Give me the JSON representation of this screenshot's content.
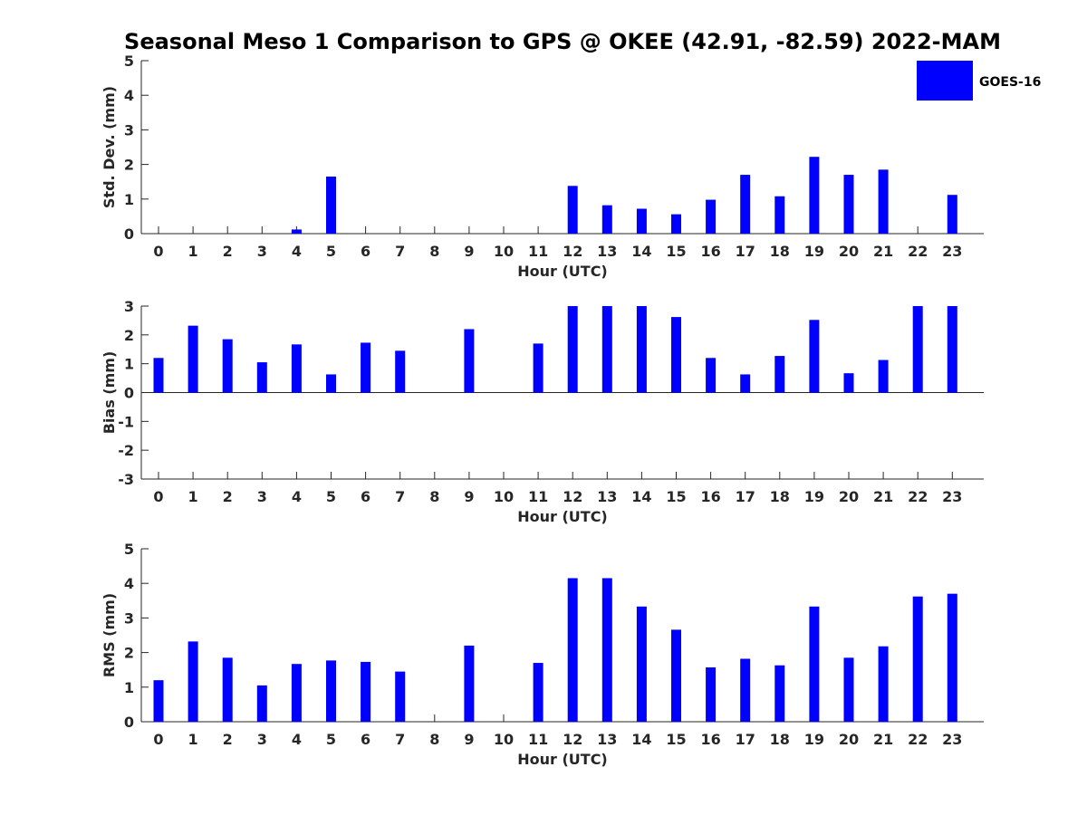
{
  "title": "Seasonal Meso 1 Comparison to GPS @ OKEE (42.91, -82.59) 2022-MAM",
  "legend": {
    "label": "GOES-16",
    "color": "#0000ff"
  },
  "bar_color": "#0000ff",
  "chart_data": [
    {
      "type": "bar",
      "id": "std",
      "categories": [
        "0",
        "1",
        "2",
        "3",
        "4",
        "5",
        "6",
        "7",
        "8",
        "9",
        "10",
        "11",
        "12",
        "13",
        "14",
        "15",
        "16",
        "17",
        "18",
        "19",
        "20",
        "21",
        "22",
        "23"
      ],
      "series": [
        {
          "name": "GOES-16",
          "values": [
            0,
            0,
            0,
            0,
            0.12,
            1.65,
            0,
            0,
            0,
            0,
            0,
            0,
            1.38,
            0.82,
            0.72,
            0.56,
            0.98,
            1.7,
            1.08,
            2.22,
            1.7,
            1.85,
            0,
            1.12
          ]
        }
      ],
      "xlabel": "Hour (UTC)",
      "ylabel": "Std. Dev. (mm)",
      "ylim": [
        0,
        5
      ],
      "yticks": [
        "0",
        "1",
        "2",
        "3",
        "4",
        "5"
      ]
    },
    {
      "type": "bar",
      "id": "bias",
      "categories": [
        "0",
        "1",
        "2",
        "3",
        "4",
        "5",
        "6",
        "7",
        "8",
        "9",
        "10",
        "11",
        "12",
        "13",
        "14",
        "15",
        "16",
        "17",
        "18",
        "19",
        "20",
        "21",
        "22",
        "23"
      ],
      "series": [
        {
          "name": "GOES-16",
          "values": [
            1.2,
            2.32,
            1.85,
            1.05,
            1.67,
            0.63,
            1.73,
            1.45,
            0,
            2.2,
            0,
            1.7,
            3.0,
            3.0,
            3.0,
            2.62,
            1.2,
            0.63,
            1.27,
            2.52,
            0.67,
            1.13,
            3.0,
            3.0
          ]
        }
      ],
      "xlabel": "Hour (UTC)",
      "ylabel": "Bias (mm)",
      "ylim": [
        -3,
        3
      ],
      "yticks": [
        "-3",
        "-2",
        "-1",
        "0",
        "1",
        "2",
        "3"
      ]
    },
    {
      "type": "bar",
      "id": "rms",
      "categories": [
        "0",
        "1",
        "2",
        "3",
        "4",
        "5",
        "6",
        "7",
        "8",
        "9",
        "10",
        "11",
        "12",
        "13",
        "14",
        "15",
        "16",
        "17",
        "18",
        "19",
        "20",
        "21",
        "22",
        "23"
      ],
      "series": [
        {
          "name": "GOES-16",
          "values": [
            1.2,
            2.32,
            1.85,
            1.05,
            1.67,
            1.77,
            1.73,
            1.45,
            0,
            2.2,
            0,
            1.7,
            4.15,
            4.15,
            3.33,
            2.66,
            1.57,
            1.82,
            1.63,
            3.33,
            1.85,
            2.18,
            3.62,
            3.7
          ]
        }
      ],
      "xlabel": "Hour (UTC)",
      "ylabel": "RMS (mm)",
      "ylim": [
        0,
        5
      ],
      "yticks": [
        "0",
        "1",
        "2",
        "3",
        "4",
        "5"
      ]
    }
  ]
}
